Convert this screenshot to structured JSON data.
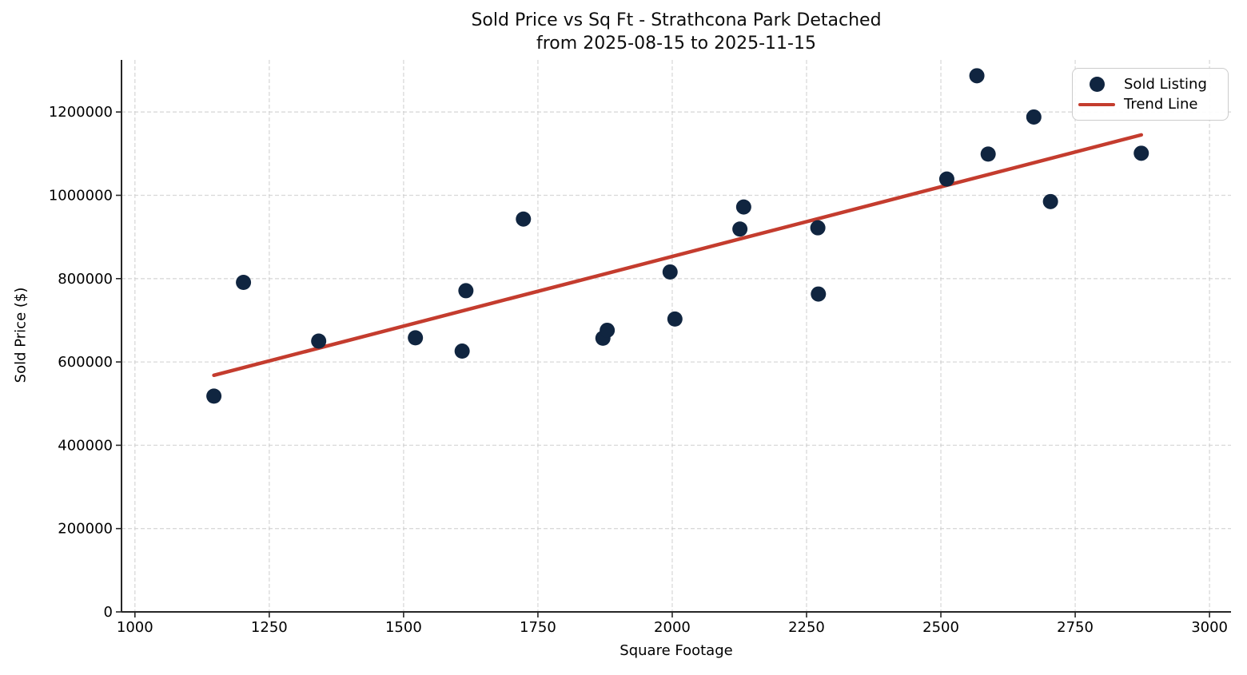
{
  "chart_data": {
    "type": "scatter",
    "title": "Sold Price vs Sq Ft - Strathcona Park Detached",
    "subtitle": "from 2025-08-15 to 2025-11-15",
    "xlabel": "Square Footage",
    "ylabel": "Sold Price ($)",
    "xlim": [
      975,
      3040
    ],
    "ylim": [
      0,
      1325000
    ],
    "x_ticks": [
      1000,
      1250,
      1500,
      1750,
      2000,
      2250,
      2500,
      2750,
      3000
    ],
    "y_ticks": [
      0,
      200000,
      400000,
      600000,
      800000,
      1000000,
      1200000
    ],
    "grid": true,
    "legend_position": "upper right",
    "series": [
      {
        "name": "Sold Listing",
        "kind": "scatter",
        "color": "#102540",
        "points": [
          [
            1147,
            518000
          ],
          [
            1202,
            791000
          ],
          [
            1342,
            650000
          ],
          [
            1522,
            658000
          ],
          [
            1609,
            626000
          ],
          [
            1616,
            771000
          ],
          [
            1723,
            943000
          ],
          [
            1871,
            657000
          ],
          [
            1879,
            676000
          ],
          [
            1996,
            816000
          ],
          [
            2005,
            703000
          ],
          [
            2126,
            919000
          ],
          [
            2133,
            972000
          ],
          [
            2271,
            922000
          ],
          [
            2272,
            763000
          ],
          [
            2511,
            1039000
          ],
          [
            2567,
            1287000
          ],
          [
            2588,
            1099000
          ],
          [
            2673,
            1188000
          ],
          [
            2704,
            985000
          ],
          [
            2873,
            1101000
          ]
        ]
      },
      {
        "name": "Trend Line",
        "kind": "line",
        "color": "#c43c2e",
        "points": [
          [
            1147,
            568000
          ],
          [
            2873,
            1145000
          ]
        ]
      }
    ]
  }
}
